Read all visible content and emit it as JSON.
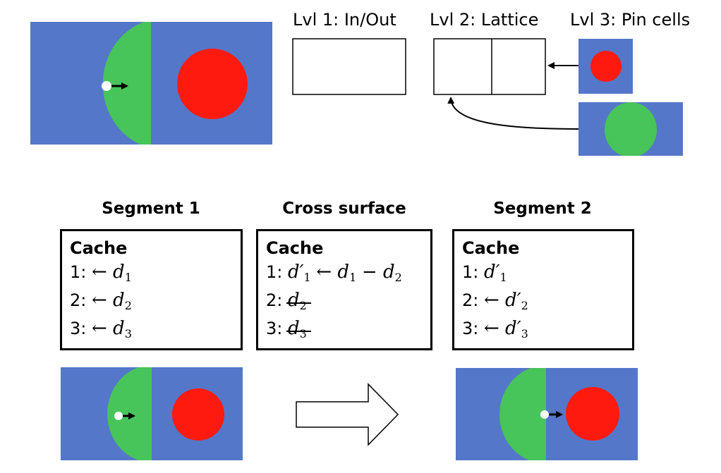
{
  "levels": {
    "level1": "Lvl 1: In/Out",
    "level2": "Lvl 2: Lattice",
    "level3": "Lvl 3: Pin cells"
  },
  "segments": [
    {
      "heading": "Segment 1",
      "cache_title": "Cache",
      "lines": [
        {
          "num": "1:",
          "expr": "← d",
          "sub": "1"
        },
        {
          "num": "2:",
          "expr": "← d",
          "sub": "2"
        },
        {
          "num": "3:",
          "expr": "← d",
          "sub": "3"
        }
      ]
    },
    {
      "heading": "Cross surface",
      "cache_title": "Cache",
      "lines": [
        {
          "num": "1:",
          "expr": "d′",
          "sub": "1",
          "tail": "← d",
          "tail_sub": "1",
          "tail2": "− d",
          "tail2_sub": "2"
        },
        {
          "num": "2:",
          "expr": "d",
          "sub": "2",
          "struck": true
        },
        {
          "num": "3:",
          "expr": "d",
          "sub": "3",
          "struck": true
        }
      ]
    },
    {
      "heading": "Segment 2",
      "cache_title": "Cache",
      "lines": [
        {
          "num": "1:",
          "expr": "d′",
          "sub": "1"
        },
        {
          "num": "2:",
          "expr": "← d′",
          "sub": "2"
        },
        {
          "num": "3:",
          "expr": "← d′",
          "sub": "3"
        }
      ]
    }
  ],
  "colors": {
    "moderator": "#5477C9",
    "fuel_green": "#47C45A",
    "fuel_red": "#FF1A0F",
    "particle": "#FFFFFF",
    "outline": "#000000"
  },
  "icons": {
    "direction": "arrow-right-icon",
    "transition": "hollow-arrow-right-icon"
  }
}
